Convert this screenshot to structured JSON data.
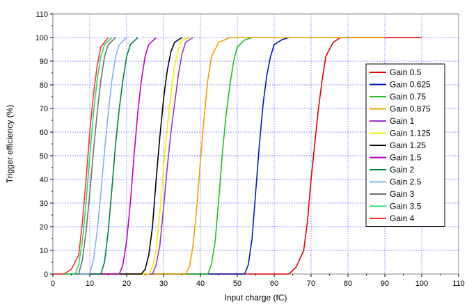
{
  "chart_data": {
    "type": "line",
    "xlabel": "Input charge (fC)",
    "ylabel": "Trigger efficiency (%)",
    "xlim": [
      0,
      110
    ],
    "ylim": [
      0,
      110
    ],
    "xticks": [
      "0",
      "10",
      "20",
      "30",
      "40",
      "50",
      "60",
      "70",
      "80",
      "90",
      "100",
      "110"
    ],
    "yticks": [
      "0",
      "10",
      "20",
      "30",
      "40",
      "50",
      "60",
      "70",
      "80",
      "90",
      "100",
      "110"
    ],
    "grid": true,
    "legend_position": "right",
    "series": [
      {
        "name": "Gain 0.5",
        "color": "#e00000",
        "x": [
          0,
          64,
          66,
          68,
          69,
          70,
          71,
          72,
          73,
          74,
          76,
          78,
          100
        ],
        "y": [
          0,
          0,
          3,
          10,
          22,
          40,
          55,
          70,
          82,
          92,
          98,
          100,
          100
        ]
      },
      {
        "name": "Gain 0.625",
        "color": "#0018c0",
        "x": [
          0,
          52,
          53,
          54,
          55,
          56,
          57,
          58,
          59,
          60,
          62,
          64
        ],
        "y": [
          0,
          0,
          4,
          15,
          35,
          55,
          72,
          84,
          92,
          97,
          99,
          100
        ]
      },
      {
        "name": "Gain 0.75",
        "color": "#20c020",
        "x": [
          0,
          42,
          43,
          44,
          45,
          46,
          47,
          48,
          49,
          50,
          52,
          54
        ],
        "y": [
          0,
          0,
          4,
          14,
          32,
          52,
          68,
          80,
          90,
          96,
          99,
          100
        ]
      },
      {
        "name": "Gain 0.875",
        "color": "#f0a000",
        "x": [
          0,
          36,
          37,
          38,
          39,
          40,
          41,
          42,
          43,
          45,
          48,
          90
        ],
        "y": [
          0,
          0,
          3,
          12,
          28,
          48,
          66,
          82,
          92,
          98,
          100,
          100
        ]
      },
      {
        "name": "Gain 1",
        "color": "#9933cc",
        "x": [
          0,
          27,
          28,
          29,
          30,
          31,
          32,
          33,
          34,
          35,
          36,
          38
        ],
        "y": [
          0,
          0,
          4,
          12,
          28,
          45,
          60,
          72,
          84,
          93,
          98,
          100
        ]
      },
      {
        "name": "Gain 1.125",
        "color": "#f0f000",
        "x": [
          0,
          26,
          27,
          28,
          29,
          30,
          31,
          32,
          33,
          34,
          35,
          37
        ],
        "y": [
          0,
          0,
          3,
          10,
          26,
          45,
          62,
          76,
          88,
          95,
          99,
          100
        ]
      },
      {
        "name": "Gain 1.25",
        "color": "#000000",
        "x": [
          0,
          24,
          25,
          26,
          27,
          28,
          29,
          30,
          31,
          32,
          33,
          35
        ],
        "y": [
          0,
          0,
          2,
          8,
          20,
          40,
          58,
          74,
          86,
          94,
          98,
          100
        ]
      },
      {
        "name": "Gain 1.5",
        "color": "#c000c0",
        "x": [
          0,
          18,
          19,
          20,
          21,
          22,
          23,
          24,
          25,
          26,
          28
        ],
        "y": [
          0,
          0,
          4,
          14,
          30,
          50,
          68,
          82,
          92,
          97,
          100
        ]
      },
      {
        "name": "Gain 2",
        "color": "#008040",
        "x": [
          0,
          13,
          14,
          15,
          16,
          17,
          18,
          19,
          20,
          21,
          23
        ],
        "y": [
          0,
          0,
          5,
          18,
          36,
          55,
          70,
          82,
          92,
          97,
          100
        ]
      },
      {
        "name": "Gain 2.5",
        "color": "#80b0f0",
        "x": [
          0,
          10,
          11,
          12,
          13,
          14,
          15,
          16,
          17,
          18,
          20
        ],
        "y": [
          0,
          0,
          6,
          18,
          34,
          52,
          68,
          82,
          92,
          97,
          100
        ]
      },
      {
        "name": "Gain 3",
        "color": "#707070",
        "x": [
          0,
          7,
          8,
          9,
          10,
          11,
          12,
          13,
          14,
          15,
          17
        ],
        "y": [
          0,
          0,
          6,
          18,
          34,
          52,
          68,
          82,
          92,
          97,
          100
        ]
      },
      {
        "name": "Gain 3.5",
        "color": "#20e060",
        "x": [
          0,
          6,
          7,
          8,
          9,
          10,
          11,
          12,
          13,
          14,
          16
        ],
        "y": [
          0,
          0,
          4,
          14,
          30,
          50,
          68,
          82,
          92,
          97,
          100
        ]
      },
      {
        "name": "Gain 4",
        "color": "#ff3030",
        "x": [
          0,
          3,
          5,
          7,
          8,
          9,
          10,
          11,
          12,
          13,
          15
        ],
        "y": [
          0,
          0,
          2,
          8,
          22,
          40,
          60,
          76,
          88,
          96,
          100
        ]
      }
    ]
  }
}
